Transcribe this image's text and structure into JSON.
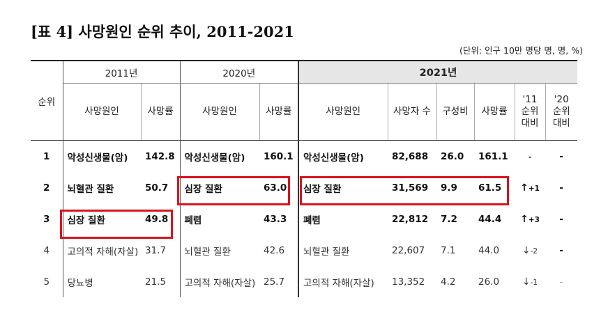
{
  "title": "[표 4] 사망원인 순위 추이, 2011-2021",
  "unit_note": "(단위: 인구 10만 명당 명, 명, %)",
  "headers": {
    "rank": "순위",
    "year_2011": "2011년",
    "year_2020": "2020년",
    "year_2021": "2021년",
    "cause": "사망원인",
    "rate": "사망률",
    "deaths": "사망자 수",
    "share": "구성비",
    "vs_2011": [
      "'11",
      "순위",
      "대비"
    ],
    "vs_2020": [
      "'20",
      "순위",
      "대비"
    ]
  },
  "rows": [
    {
      "rank": "1",
      "c2011": "악성신생물(암)",
      "r2011": "142.8",
      "c2020": "악성신생물(암)",
      "r2020": "160.1",
      "c2021": "악성신생물(암)",
      "deaths": "82,688",
      "share": "26.0",
      "r2021": "161.1",
      "arrow11": "",
      "ch11": "-",
      "ch20": "-",
      "bold": true
    },
    {
      "rank": "2",
      "c2011": "뇌혈관 질환",
      "r2011": "50.7",
      "c2020": "심장 질환",
      "r2020": "63.0",
      "c2021": "심장 질환",
      "deaths": "31,569",
      "share": "9.9",
      "r2021": "61.5",
      "arrow11": "↑",
      "ch11": "+1",
      "ch20": "-",
      "bold": true
    },
    {
      "rank": "3",
      "c2011": "심장 질환",
      "r2011": "49.8",
      "c2020": "폐렴",
      "r2020": "43.3",
      "c2021": "폐렴",
      "deaths": "22,812",
      "share": "7.2",
      "r2021": "44.4",
      "arrow11": "↑",
      "ch11": "+3",
      "ch20": "-",
      "bold": true
    },
    {
      "rank": "4",
      "c2011": "고의적 자해(자살)",
      "r2011": "31.7",
      "c2020": "뇌혈관 질환",
      "r2020": "42.6",
      "c2021": "뇌혈관 질환",
      "deaths": "22,607",
      "share": "7.1",
      "r2021": "44.0",
      "arrow11": "↓",
      "ch11": "-2",
      "ch20": "-",
      "bold": false
    },
    {
      "rank": "5",
      "c2011": "당뇨병",
      "r2011": "21.5",
      "c2020": "고의적 자해(자살)",
      "r2020": "25.7",
      "c2021": "고의적 자해(자살)",
      "deaths": "13,352",
      "share": "4.2",
      "r2021": "26.0",
      "arrow11": "↓",
      "ch11": "-1",
      "ch20": "-",
      "bold": false
    }
  ],
  "highlight_color": "#d9131e"
}
